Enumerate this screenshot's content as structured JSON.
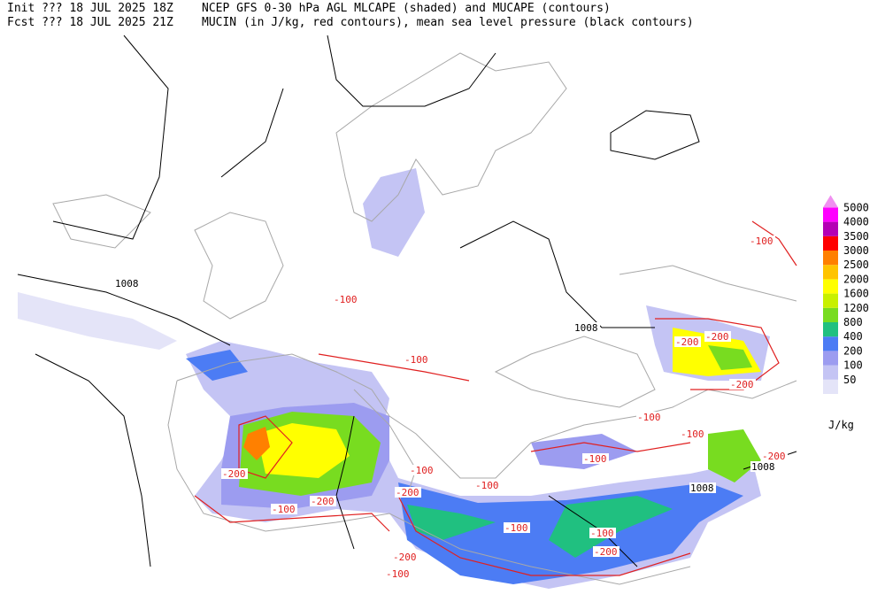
{
  "header": {
    "init": "Init  ??? 18 JUL 2025 18Z",
    "title": "NCEP GFS 0-30 hPa AGL MLCAPE (shaded) and MUCAPE (contours)",
    "fcst": "Fcst ??? 18 JUL 2025 21Z",
    "subtitle": "MUCIN (in J/kg, red contours), mean sea level pressure (black contours)"
  },
  "colorbar": {
    "levels": [
      50,
      100,
      200,
      400,
      800,
      1200,
      1600,
      2000,
      2500,
      3000,
      3500,
      4000,
      5000
    ],
    "colors": [
      "#e4e4f8",
      "#c4c4f4",
      "#9c9cf0",
      "#4c7cf4",
      "#20c080",
      "#78dc20",
      "#c8f000",
      "#ffff00",
      "#ffc400",
      "#ff8000",
      "#ff0000",
      "#b400b4",
      "#ff00ff"
    ],
    "extend_color": "#f090f0",
    "unit": "J/kg"
  },
  "contour_labels": {
    "pressure": [
      "1008",
      "1008",
      "1008",
      "1008"
    ],
    "cin": [
      "-100",
      "-100",
      "-100",
      "-100",
      "-100",
      "-100",
      "-100",
      "-100",
      "-100",
      "-100",
      "-100",
      "-100",
      "-200",
      "-200",
      "-200",
      "-200",
      "-200",
      "-200",
      "-200",
      "-200",
      "-200"
    ]
  }
}
